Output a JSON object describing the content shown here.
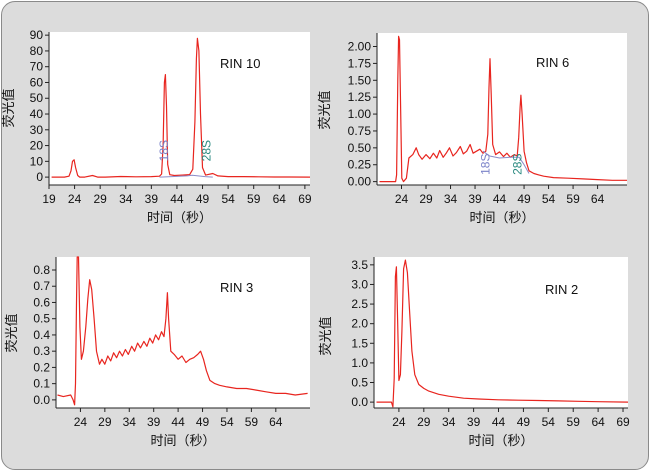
{
  "chart_data": [
    {
      "type": "line",
      "title": "RIN 10",
      "xlabel": "时间（秒）",
      "ylabel": "荧光值",
      "xlim": [
        19,
        70
      ],
      "ylim": [
        -5,
        92
      ],
      "xticks": [
        19,
        24,
        29,
        34,
        39,
        44,
        49,
        54,
        59,
        64,
        69
      ],
      "yticks": [
        0,
        10,
        20,
        30,
        40,
        50,
        60,
        70,
        80,
        90
      ],
      "annotations": [
        {
          "text": "18S",
          "x": 42.3,
          "y": 10,
          "color": "#7a82c8"
        },
        {
          "text": "28S",
          "x": 50.6,
          "y": 10,
          "color": "#2a8a80"
        }
      ],
      "series": [
        {
          "color": "#e8251f",
          "points": [
            [
              19.5,
              0
            ],
            [
              22,
              0
            ],
            [
              22.9,
              0.6
            ],
            [
              23.3,
              4
            ],
            [
              23.6,
              10
            ],
            [
              23.9,
              11
            ],
            [
              24.2,
              6
            ],
            [
              24.6,
              1
            ],
            [
              25,
              0
            ],
            [
              26,
              0
            ],
            [
              27.5,
              1
            ],
            [
              28.5,
              0
            ],
            [
              30,
              0
            ],
            [
              33,
              0.4
            ],
            [
              36,
              0.2
            ],
            [
              39,
              0.3
            ],
            [
              40.6,
              0.6
            ],
            [
              41,
              2
            ],
            [
              41.3,
              20
            ],
            [
              41.55,
              60
            ],
            [
              41.75,
              65
            ],
            [
              41.95,
              45
            ],
            [
              42.2,
              8
            ],
            [
              42.6,
              1.5
            ],
            [
              43.5,
              1
            ],
            [
              45,
              1.3
            ],
            [
              46.5,
              1.6
            ],
            [
              47.1,
              5
            ],
            [
              47.5,
              35
            ],
            [
              47.8,
              75
            ],
            [
              48,
              88
            ],
            [
              48.3,
              80
            ],
            [
              48.6,
              40
            ],
            [
              49,
              6
            ],
            [
              49.6,
              1.3
            ],
            [
              51,
              2.3
            ],
            [
              52,
              0.8
            ],
            [
              54,
              0.3
            ],
            [
              57,
              0.3
            ],
            [
              60,
              0.2
            ],
            [
              63,
              0.1
            ],
            [
              66,
              0.1
            ],
            [
              70,
              0
            ]
          ]
        },
        {
          "color": "#8c8cc8",
          "points": [
            [
              40.6,
              0
            ],
            [
              43,
              0.3
            ],
            [
              46,
              0.8
            ],
            [
              47,
              1.2
            ],
            [
              49.5,
              0.3
            ],
            [
              51,
              0
            ]
          ]
        }
      ]
    },
    {
      "type": "line",
      "title": "RIN 6",
      "xlabel": "时间（秒）",
      "ylabel": "荧光值",
      "xlim": [
        19,
        70
      ],
      "ylim": [
        -0.05,
        2.2
      ],
      "xticks": [
        24,
        29,
        34,
        39,
        44,
        49,
        54,
        59,
        64
      ],
      "yticks": [
        0.0,
        0.25,
        0.5,
        0.75,
        1.0,
        1.25,
        1.5,
        1.75,
        2.0
      ],
      "annotations": [
        {
          "text": "18S",
          "x": 42,
          "y": 0.1,
          "color": "#7a82c8"
        },
        {
          "text": "28S",
          "x": 48.5,
          "y": 0.1,
          "color": "#2a8a80"
        }
      ],
      "series": [
        {
          "color": "#e8251f",
          "points": [
            [
              19.5,
              0
            ],
            [
              22.8,
              0
            ],
            [
              23,
              0.1
            ],
            [
              23.25,
              1.5
            ],
            [
              23.4,
              2.15
            ],
            [
              23.6,
              2.1
            ],
            [
              23.8,
              1.2
            ],
            [
              24.05,
              0.05
            ],
            [
              24.4,
              0
            ],
            [
              25,
              0.05
            ],
            [
              25.5,
              0.35
            ],
            [
              26.3,
              0.4
            ],
            [
              27,
              0.5
            ],
            [
              27.5,
              0.4
            ],
            [
              28.2,
              0.33
            ],
            [
              29,
              0.4
            ],
            [
              29.8,
              0.34
            ],
            [
              30.5,
              0.42
            ],
            [
              31.2,
              0.35
            ],
            [
              31.8,
              0.46
            ],
            [
              32.5,
              0.36
            ],
            [
              33.2,
              0.43
            ],
            [
              33.8,
              0.5
            ],
            [
              34.5,
              0.38
            ],
            [
              35.2,
              0.43
            ],
            [
              36,
              0.52
            ],
            [
              36.6,
              0.41
            ],
            [
              37.3,
              0.45
            ],
            [
              38,
              0.55
            ],
            [
              38.6,
              0.42
            ],
            [
              39.3,
              0.45
            ],
            [
              40,
              0.48
            ],
            [
              40.6,
              0.42
            ],
            [
              41.2,
              0.45
            ],
            [
              41.6,
              0.7
            ],
            [
              41.85,
              1.4
            ],
            [
              42.05,
              1.82
            ],
            [
              42.3,
              1.3
            ],
            [
              42.6,
              0.55
            ],
            [
              43.2,
              0.4
            ],
            [
              44,
              0.44
            ],
            [
              44.8,
              0.37
            ],
            [
              45.5,
              0.42
            ],
            [
              46.2,
              0.36
            ],
            [
              47,
              0.4
            ],
            [
              47.6,
              0.38
            ],
            [
              47.9,
              0.65
            ],
            [
              48.2,
              1.1
            ],
            [
              48.35,
              1.28
            ],
            [
              48.6,
              1.0
            ],
            [
              49,
              0.45
            ],
            [
              49.5,
              0.28
            ],
            [
              50,
              0.16
            ],
            [
              51,
              0.12
            ],
            [
              52,
              0.1
            ],
            [
              53,
              0.08
            ],
            [
              55,
              0.06
            ],
            [
              58,
              0.05
            ],
            [
              61,
              0.04
            ],
            [
              64,
              0.03
            ],
            [
              67,
              0.02
            ],
            [
              70,
              0.02
            ]
          ]
        },
        {
          "color": "#8c8cc8",
          "points": [
            [
              40.6,
              0.45
            ],
            [
              42,
              0.38
            ],
            [
              44,
              0.35
            ],
            [
              46,
              0.36
            ],
            [
              48,
              0.36
            ],
            [
              49,
              0.25
            ],
            [
              50,
              0.12
            ]
          ]
        }
      ]
    },
    {
      "type": "line",
      "title": "RIN 3",
      "xlabel": "时间（秒）",
      "ylabel": "荧光值",
      "xlim": [
        19,
        71
      ],
      "ylim": [
        -0.05,
        0.88
      ],
      "xticks": [
        24,
        29,
        34,
        39,
        44,
        49,
        54,
        59,
        64
      ],
      "yticks": [
        0.0,
        0.1,
        0.2,
        0.3,
        0.4,
        0.5,
        0.6,
        0.7,
        0.8
      ],
      "series": [
        {
          "color": "#e8251f",
          "points": [
            [
              19.3,
              0.03
            ],
            [
              20.5,
              0.02
            ],
            [
              22,
              0.03
            ],
            [
              22.5,
              0.0
            ],
            [
              22.8,
              -0.03
            ],
            [
              23,
              0.1
            ],
            [
              23.2,
              0.6
            ],
            [
              23.35,
              0.88
            ],
            [
              23.6,
              0.88
            ],
            [
              23.9,
              0.45
            ],
            [
              24.2,
              0.25
            ],
            [
              24.6,
              0.3
            ],
            [
              25.1,
              0.45
            ],
            [
              25.5,
              0.62
            ],
            [
              25.9,
              0.74
            ],
            [
              26.3,
              0.68
            ],
            [
              26.8,
              0.5
            ],
            [
              27.3,
              0.3
            ],
            [
              27.9,
              0.22
            ],
            [
              28.4,
              0.25
            ],
            [
              29,
              0.22
            ],
            [
              29.6,
              0.27
            ],
            [
              30.2,
              0.24
            ],
            [
              30.8,
              0.29
            ],
            [
              31.4,
              0.26
            ],
            [
              32,
              0.3
            ],
            [
              32.6,
              0.27
            ],
            [
              33.2,
              0.31
            ],
            [
              33.8,
              0.28
            ],
            [
              34.5,
              0.33
            ],
            [
              35.1,
              0.3
            ],
            [
              35.7,
              0.35
            ],
            [
              36.3,
              0.32
            ],
            [
              37,
              0.36
            ],
            [
              37.6,
              0.33
            ],
            [
              38.2,
              0.38
            ],
            [
              38.8,
              0.35
            ],
            [
              39.4,
              0.4
            ],
            [
              40,
              0.37
            ],
            [
              40.6,
              0.42
            ],
            [
              41.1,
              0.39
            ],
            [
              41.5,
              0.5
            ],
            [
              41.8,
              0.66
            ],
            [
              42.05,
              0.5
            ],
            [
              42.5,
              0.3
            ],
            [
              43.2,
              0.28
            ],
            [
              44,
              0.25
            ],
            [
              44.8,
              0.27
            ],
            [
              45.6,
              0.23
            ],
            [
              46.4,
              0.25
            ],
            [
              47.2,
              0.26
            ],
            [
              48,
              0.28
            ],
            [
              48.6,
              0.3
            ],
            [
              49.2,
              0.25
            ],
            [
              49.8,
              0.18
            ],
            [
              50.5,
              0.12
            ],
            [
              51.5,
              0.1
            ],
            [
              52.5,
              0.09
            ],
            [
              54,
              0.08
            ],
            [
              56,
              0.07
            ],
            [
              58,
              0.07
            ],
            [
              60,
              0.06
            ],
            [
              62,
              0.05
            ],
            [
              64,
              0.04
            ],
            [
              66,
              0.04
            ],
            [
              68,
              0.03
            ],
            [
              70.5,
              0.04
            ]
          ]
        }
      ]
    },
    {
      "type": "line",
      "title": "RIN 2",
      "xlabel": "时间（秒）",
      "ylabel": "荧光值",
      "xlim": [
        19,
        70
      ],
      "ylim": [
        -0.15,
        3.7
      ],
      "xticks": [
        24,
        29,
        34,
        39,
        44,
        49,
        54,
        59,
        64,
        69
      ],
      "yticks": [
        0.0,
        0.5,
        1.0,
        1.5,
        2.0,
        2.5,
        3.0,
        3.5
      ],
      "series": [
        {
          "color": "#e8251f",
          "points": [
            [
              19.5,
              0
            ],
            [
              22.5,
              0
            ],
            [
              22.8,
              -0.12
            ],
            [
              23.05,
              0.6
            ],
            [
              23.3,
              3.2
            ],
            [
              23.5,
              3.45
            ],
            [
              23.75,
              2.0
            ],
            [
              24,
              0.55
            ],
            [
              24.3,
              0.7
            ],
            [
              24.6,
              1.8
            ],
            [
              24.95,
              3.4
            ],
            [
              25.3,
              3.62
            ],
            [
              25.7,
              3.3
            ],
            [
              26.1,
              2.4
            ],
            [
              26.6,
              1.3
            ],
            [
              27.2,
              0.7
            ],
            [
              28,
              0.45
            ],
            [
              29,
              0.35
            ],
            [
              30,
              0.28
            ],
            [
              32,
              0.2
            ],
            [
              34,
              0.15
            ],
            [
              37,
              0.1
            ],
            [
              40,
              0.08
            ],
            [
              44,
              0.06
            ],
            [
              48,
              0.05
            ],
            [
              52,
              0.04
            ],
            [
              56,
              0.03
            ],
            [
              60,
              0.02
            ],
            [
              64,
              0.01
            ],
            [
              70,
              0
            ]
          ]
        }
      ]
    }
  ]
}
